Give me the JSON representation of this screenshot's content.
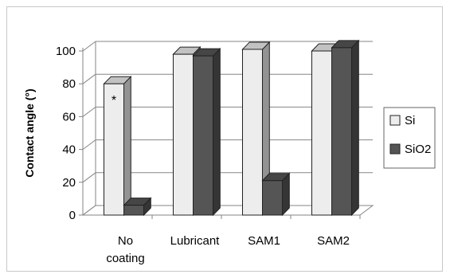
{
  "chart_data": {
    "type": "bar",
    "categories": [
      "No coating",
      "Lubricant",
      "SAM1",
      "SAM2"
    ],
    "category_lines": [
      [
        "No",
        "coating"
      ],
      [
        "Lubricant"
      ],
      [
        "SAM1"
      ],
      [
        "SAM2"
      ]
    ],
    "series": [
      {
        "name": "Si",
        "values": [
          80,
          98,
          101,
          100
        ],
        "color": "#ededed"
      },
      {
        "name": "SiO2",
        "values": [
          6,
          97,
          21,
          102
        ],
        "color": "#555555"
      }
    ],
    "ylabel": "Contact angle (°)",
    "xlabel": "",
    "ylim": [
      0,
      100
    ],
    "yticks": [
      0,
      20,
      40,
      60,
      80,
      100
    ],
    "grid": true,
    "legend": "right",
    "style_3d": true,
    "annotations": [
      {
        "text": "*",
        "category": "No coating",
        "series": "Si"
      }
    ]
  }
}
